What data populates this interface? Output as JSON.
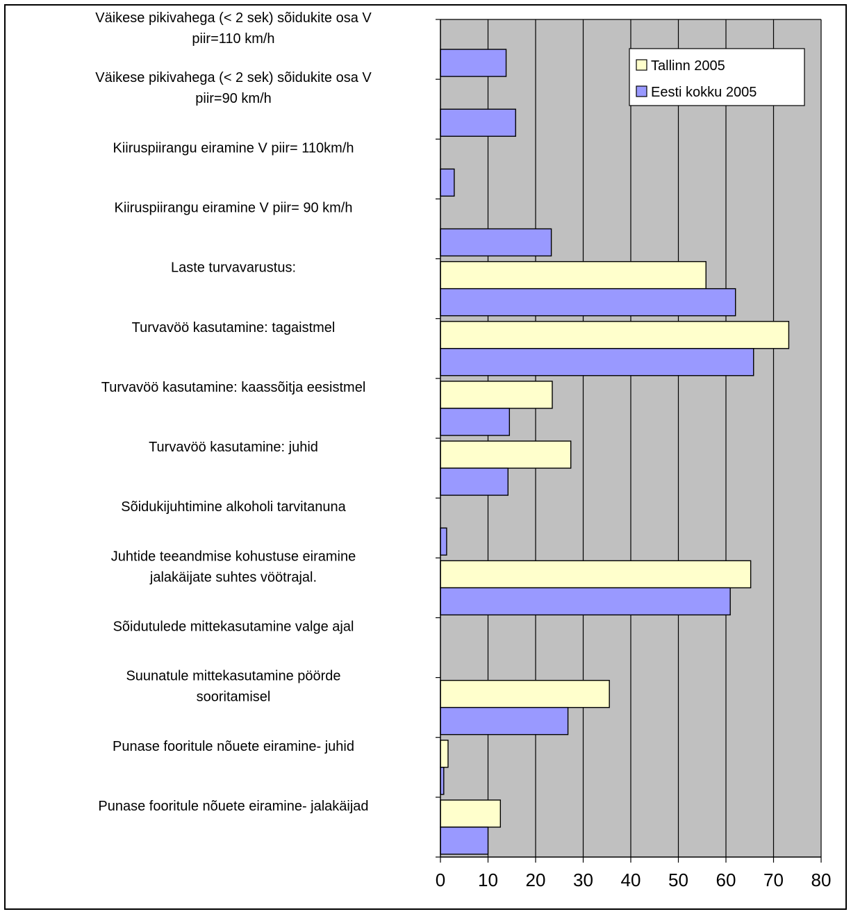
{
  "chart_data": {
    "type": "bar",
    "orientation": "horizontal",
    "title": "",
    "xlabel": "",
    "ylabel": "",
    "xlim": [
      0,
      80
    ],
    "ticks": [
      "0",
      "10",
      "20",
      "30",
      "40",
      "50",
      "60",
      "70",
      "80"
    ],
    "grid": true,
    "legend_position": "top-right",
    "plot_background": "#C0C0C0",
    "categories": [
      [
        "Väikese pikivahega (< 2 sek) sõidukite osa V",
        "piir=110 km/h"
      ],
      [
        "Väikese pikivahega (< 2 sek) sõidukite osa V",
        "piir=90 km/h"
      ],
      [
        "Kiiruspiirangu eiramine V piir= 110km/h"
      ],
      [
        "Kiiruspiirangu eiramine V piir= 90 km/h"
      ],
      [
        "Laste turvavarustus:"
      ],
      [
        "Turvavöö kasutamine: tagaistmel"
      ],
      [
        "Turvavöö kasutamine: kaassõitja eesistmel"
      ],
      [
        "Turvavöö kasutamine: juhid"
      ],
      [
        "Sõidukijuhtimine alkoholi tarvitanuna"
      ],
      [
        "Juhtide teeandmise kohustuse eiramine",
        "jalakäijate suhtes vöötrajal."
      ],
      [
        "Sõidutulede mittekasutamine valge ajal"
      ],
      [
        "Suunatule mittekasutamine pöörde",
        "sooritamisel"
      ],
      [
        "Punase fooritule nõuete eiramine- juhid"
      ],
      [
        "Punase fooritule nõuete eiramine- jalakäijad"
      ]
    ],
    "series": [
      {
        "name": "Tallinn 2005",
        "color": "#FFFFCC",
        "values": [
          null,
          null,
          null,
          null,
          55.8,
          73.2,
          23.5,
          27.4,
          null,
          65.2,
          null,
          35.5,
          1.6,
          12.6
        ]
      },
      {
        "name": "Eesti kokku 2005",
        "color": "#9999FF",
        "values": [
          13.8,
          15.8,
          2.9,
          23.3,
          62.0,
          65.8,
          14.5,
          14.2,
          1.3,
          60.9,
          null,
          26.8,
          0.7,
          10.0
        ]
      }
    ]
  }
}
